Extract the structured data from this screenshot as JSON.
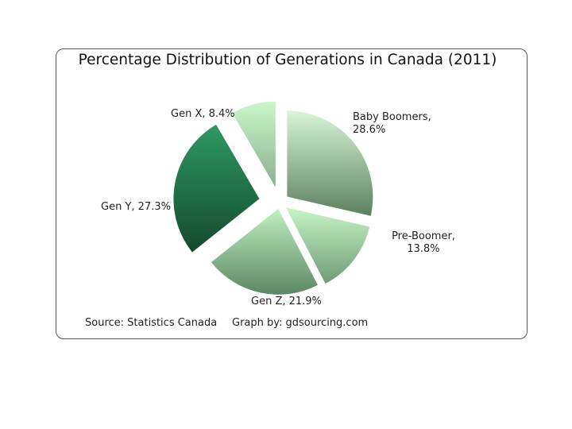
{
  "chart_data": {
    "type": "pie",
    "title": "Percentage Distribution of Generations in Canada  (2011)",
    "slices": [
      {
        "label": "Baby Boomers, 28.6%",
        "name": "Baby Boomers",
        "value": 28.6
      },
      {
        "label": "Pre-Boomer, 13.8%",
        "name": "Pre-Boomer",
        "value": 13.8
      },
      {
        "label": "Gen Z, 21.9%",
        "name": "Gen Z",
        "value": 21.9
      },
      {
        "label": "Gen Y, 27.3%",
        "name": "Gen Y",
        "value": 27.3
      },
      {
        "label": "Gen X, 8.4%",
        "name": "Gen X",
        "value": 8.4
      }
    ],
    "colors": {
      "baby_boomers": [
        "#d8f5d8",
        "#5a8060"
      ],
      "pre_boomer": [
        "#c6f5c6",
        "#6f9a74"
      ],
      "gen_z": [
        "#c0f0c0",
        "#5e8865"
      ],
      "gen_y": [
        "#2e9963",
        "#144a2c"
      ],
      "gen_x": [
        "#c9f7c9",
        "#8ab08d"
      ]
    }
  },
  "footer": {
    "source": "Source: Statistics Canada",
    "credit": "Graph by: gdsourcing.com"
  }
}
